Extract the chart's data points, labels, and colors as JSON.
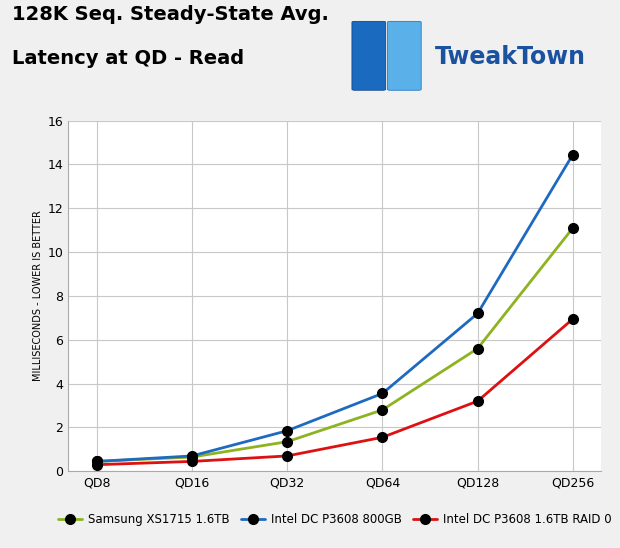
{
  "title_line1": "128K Seq. Steady-State Avg.",
  "title_line2": "Latency at QD - Read",
  "ylabel": "MILLISECONDS - LOWER IS BETTER",
  "x_labels": [
    "QD8",
    "QD16",
    "QD32",
    "QD64",
    "QD128",
    "QD256"
  ],
  "x_values": [
    0,
    1,
    2,
    3,
    4,
    5
  ],
  "ylim": [
    0,
    16
  ],
  "yticks": [
    0,
    2,
    4,
    6,
    8,
    10,
    12,
    14,
    16
  ],
  "series": [
    {
      "label": "Samsung XS1715 1.6TB",
      "color": "#8db320",
      "values": [
        0.45,
        0.65,
        1.35,
        2.8,
        5.6,
        11.1
      ]
    },
    {
      "label": "Intel DC P3608 800GB",
      "color": "#1e6ac0",
      "values": [
        0.45,
        0.7,
        1.85,
        3.55,
        7.2,
        14.45
      ]
    },
    {
      "label": "Intel DC P3608 1.6TB RAID 0",
      "color": "#dd1111",
      "values": [
        0.3,
        0.45,
        0.7,
        1.55,
        3.2,
        6.95
      ]
    }
  ],
  "marker_color": "#000000",
  "marker_size": 7,
  "line_width": 2.0,
  "background_color": "#f0f0f0",
  "plot_bg_color": "#ffffff",
  "grid_color": "#c8c8c8",
  "title_fontsize": 14,
  "axis_label_fontsize": 7,
  "tick_fontsize": 9,
  "legend_fontsize": 8.5,
  "tweaktown_color": "#1a52a0",
  "tweaktown_fontsize": 20
}
